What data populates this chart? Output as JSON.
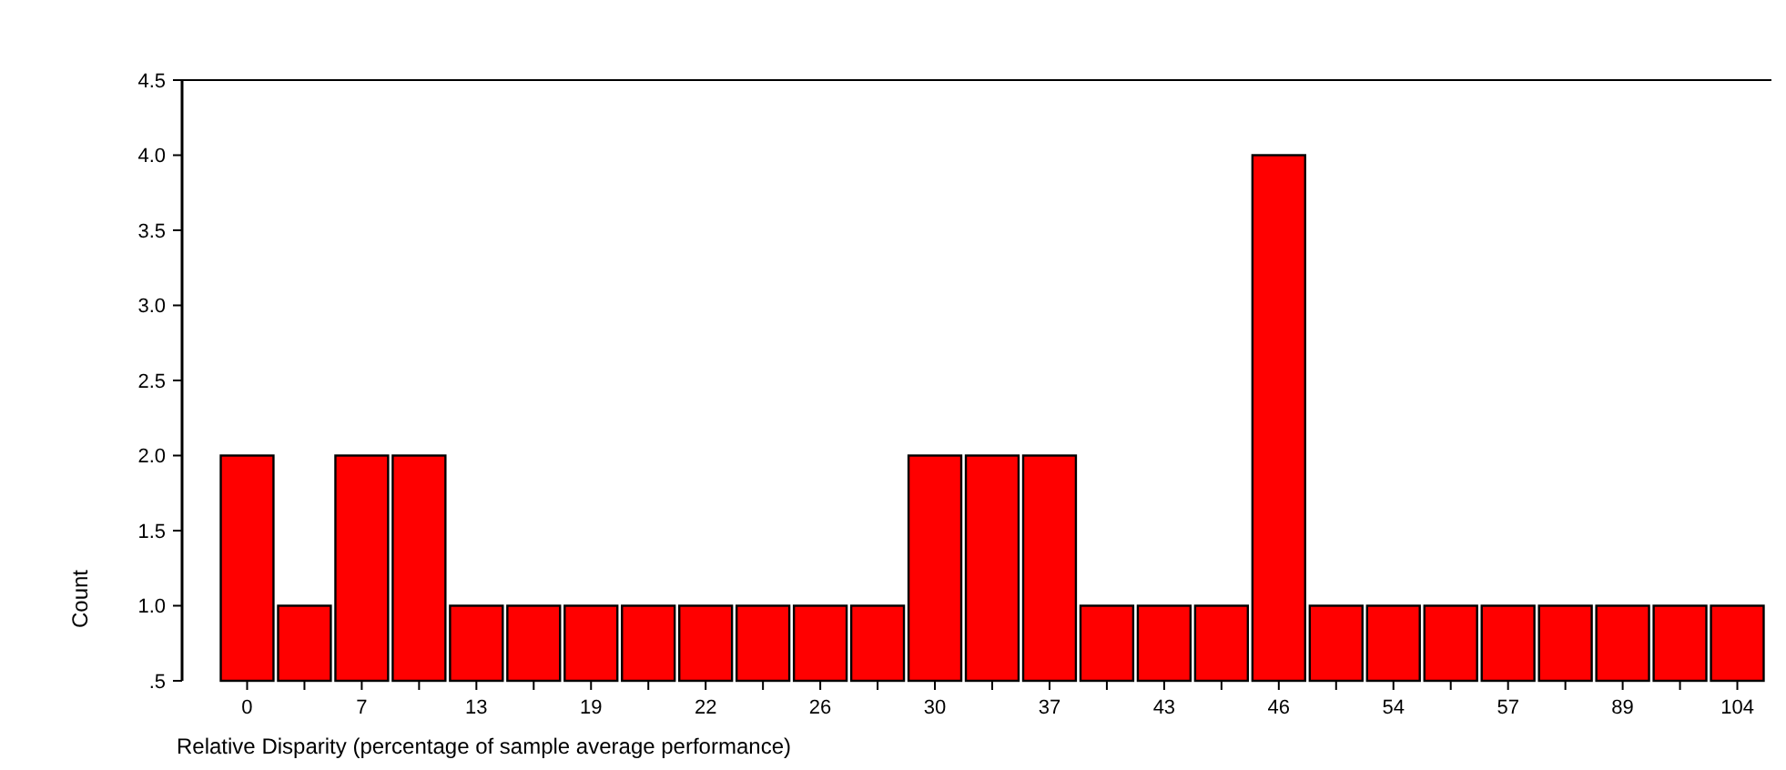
{
  "chart_data": {
    "type": "bar",
    "xlabel": "Relative Disparity (percentage of sample average performance)",
    "ylabel": "Count",
    "categories": [
      "0",
      null,
      "7",
      null,
      "13",
      null,
      "19",
      null,
      "22",
      null,
      "26",
      null,
      "30",
      null,
      "37",
      null,
      "43",
      null,
      "46",
      null,
      "54",
      null,
      "57",
      null,
      "89",
      null,
      "104"
    ],
    "values": [
      2,
      1,
      2,
      2,
      1,
      1,
      1,
      1,
      1,
      1,
      1,
      1,
      2,
      2,
      2,
      1,
      1,
      1,
      4,
      1,
      1,
      1,
      1,
      1,
      1,
      1,
      1
    ],
    "color": "#ff0000",
    "ylim": [
      0.5,
      4.5
    ],
    "yticks": [
      {
        "value": 0.5,
        "label": ".5"
      },
      {
        "value": 1,
        "label": "1.0"
      },
      {
        "value": 1.5,
        "label": "1.5"
      },
      {
        "value": 2,
        "label": "2.0"
      },
      {
        "value": 2.5,
        "label": "2.5"
      },
      {
        "value": 3,
        "label": "3.0"
      },
      {
        "value": 3.5,
        "label": "3.5"
      },
      {
        "value": 4,
        "label": "4.0"
      },
      {
        "value": 4.5,
        "label": "4.5"
      }
    ],
    "grid": false
  }
}
